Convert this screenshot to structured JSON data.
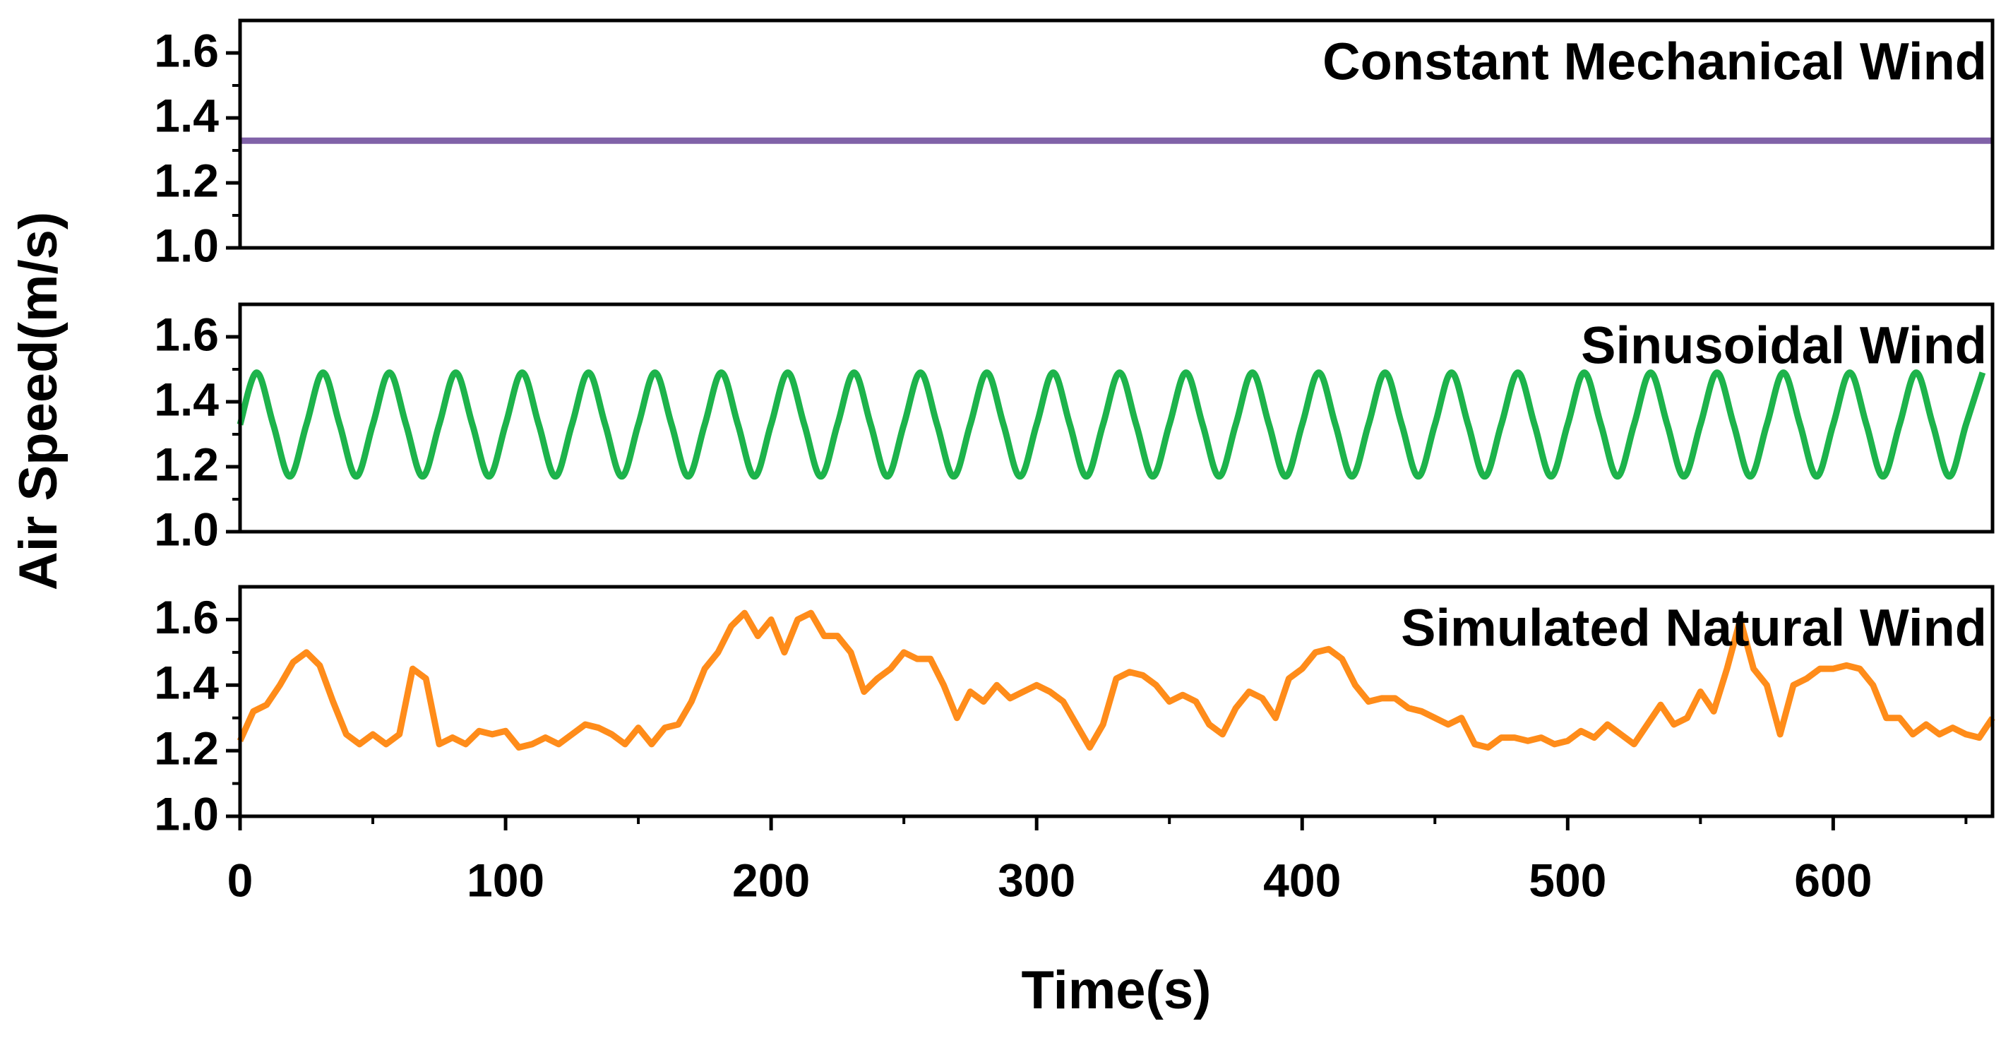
{
  "chart_data": [
    {
      "type": "line",
      "title": "Constant Mechanical Wind",
      "color": "#8062a8",
      "x": [
        0,
        660
      ],
      "values": [
        1.33,
        1.33
      ],
      "xlim": [
        0,
        660
      ],
      "ylim": [
        1,
        1.7
      ],
      "yticks": [
        {
          "value": 1,
          "label": "1.0"
        },
        1.2,
        1.4,
        1.6
      ]
    },
    {
      "type": "line",
      "title": "Sinusoidal Wind",
      "color": "#1db34b",
      "smooth": true,
      "ylabel": "Air Speed(m/s)",
      "x": [
        0,
        6.25,
        12.5,
        18.75,
        25,
        31.25,
        37.5,
        43.75,
        50,
        56.25,
        62.5,
        68.75,
        75,
        81.25,
        87.5,
        93.75,
        100,
        106.25,
        112.5,
        118.75,
        125,
        131.25,
        137.5,
        143.75,
        150,
        156.25,
        162.5,
        168.75,
        175,
        181.25,
        187.5,
        193.75,
        200,
        206.25,
        212.5,
        218.75,
        225,
        231.25,
        237.5,
        243.75,
        250,
        256.25,
        262.5,
        268.75,
        275,
        281.25,
        287.5,
        293.75,
        300,
        306.25,
        312.5,
        318.75,
        325,
        331.25,
        337.5,
        343.75,
        350,
        356.25,
        362.5,
        368.75,
        375,
        381.25,
        387.5,
        393.75,
        400,
        406.25,
        412.5,
        418.75,
        425,
        431.25,
        437.5,
        443.75,
        450,
        456.25,
        462.5,
        468.75,
        475,
        481.25,
        487.5,
        493.75,
        500,
        506.25,
        512.5,
        518.75,
        525,
        531.25,
        537.5,
        543.75,
        550,
        556.25,
        562.5,
        568.75,
        575,
        581.25,
        587.5,
        593.75,
        600,
        606.25,
        612.5,
        618.75,
        625,
        631.25,
        637.5,
        643.75,
        650,
        656.25
      ],
      "values": [
        1.33,
        1.49,
        1.33,
        1.17,
        1.33,
        1.49,
        1.33,
        1.17,
        1.33,
        1.49,
        1.33,
        1.17,
        1.33,
        1.49,
        1.33,
        1.17,
        1.33,
        1.49,
        1.33,
        1.17,
        1.33,
        1.49,
        1.33,
        1.17,
        1.33,
        1.49,
        1.33,
        1.17,
        1.33,
        1.49,
        1.33,
        1.17,
        1.33,
        1.49,
        1.33,
        1.17,
        1.33,
        1.49,
        1.33,
        1.17,
        1.33,
        1.49,
        1.33,
        1.17,
        1.33,
        1.49,
        1.33,
        1.17,
        1.33,
        1.49,
        1.33,
        1.17,
        1.33,
        1.49,
        1.33,
        1.17,
        1.33,
        1.49,
        1.33,
        1.17,
        1.33,
        1.49,
        1.33,
        1.17,
        1.33,
        1.49,
        1.33,
        1.17,
        1.33,
        1.49,
        1.33,
        1.17,
        1.33,
        1.49,
        1.33,
        1.17,
        1.33,
        1.49,
        1.33,
        1.17,
        1.33,
        1.49,
        1.33,
        1.17,
        1.33,
        1.49,
        1.33,
        1.17,
        1.33,
        1.49,
        1.33,
        1.17,
        1.33,
        1.49,
        1.33,
        1.17,
        1.33,
        1.49,
        1.33,
        1.17,
        1.33,
        1.49,
        1.33,
        1.17,
        1.33,
        1.49
      ],
      "xlim": [
        0,
        660
      ],
      "ylim": [
        1,
        1.7
      ],
      "yticks": [
        {
          "value": 1,
          "label": "1.0"
        },
        1.2,
        1.4,
        1.6
      ]
    },
    {
      "type": "line",
      "title": "Simulated Natural Wind",
      "color": "#ff8c1a",
      "xlabel": "Time(s)",
      "x": [
        0,
        5,
        10,
        15,
        20,
        25,
        30,
        35,
        40,
        45,
        50,
        55,
        60,
        65,
        70,
        75,
        80,
        85,
        90,
        95,
        100,
        105,
        110,
        115,
        120,
        125,
        130,
        135,
        140,
        145,
        150,
        155,
        160,
        165,
        170,
        175,
        180,
        185,
        190,
        195,
        200,
        205,
        210,
        215,
        220,
        225,
        230,
        235,
        240,
        245,
        250,
        255,
        260,
        265,
        270,
        275,
        280,
        285,
        290,
        295,
        300,
        305,
        310,
        315,
        320,
        325,
        330,
        335,
        340,
        345,
        350,
        355,
        360,
        365,
        370,
        375,
        380,
        385,
        390,
        395,
        400,
        405,
        410,
        415,
        420,
        425,
        430,
        435,
        440,
        445,
        450,
        455,
        460,
        465,
        470,
        475,
        480,
        485,
        490,
        495,
        500,
        505,
        510,
        515,
        520,
        525,
        530,
        535,
        540,
        545,
        550,
        555,
        560,
        565,
        570,
        575,
        580,
        585,
        590,
        595,
        600,
        605,
        610,
        615,
        620,
        625,
        630,
        635,
        640,
        645,
        650,
        655,
        660
      ],
      "values": [
        1.23,
        1.32,
        1.34,
        1.4,
        1.47,
        1.5,
        1.46,
        1.35,
        1.25,
        1.22,
        1.25,
        1.22,
        1.25,
        1.45,
        1.42,
        1.22,
        1.24,
        1.22,
        1.26,
        1.25,
        1.26,
        1.21,
        1.22,
        1.24,
        1.22,
        1.25,
        1.28,
        1.27,
        1.25,
        1.22,
        1.27,
        1.22,
        1.27,
        1.28,
        1.35,
        1.45,
        1.5,
        1.58,
        1.62,
        1.55,
        1.6,
        1.5,
        1.6,
        1.62,
        1.55,
        1.55,
        1.5,
        1.38,
        1.42,
        1.45,
        1.5,
        1.48,
        1.48,
        1.4,
        1.3,
        1.38,
        1.35,
        1.4,
        1.36,
        1.38,
        1.4,
        1.38,
        1.35,
        1.28,
        1.21,
        1.28,
        1.42,
        1.44,
        1.43,
        1.4,
        1.35,
        1.37,
        1.35,
        1.28,
        1.25,
        1.33,
        1.38,
        1.36,
        1.3,
        1.42,
        1.45,
        1.5,
        1.51,
        1.48,
        1.4,
        1.35,
        1.36,
        1.36,
        1.33,
        1.32,
        1.3,
        1.28,
        1.3,
        1.22,
        1.21,
        1.24,
        1.24,
        1.23,
        1.24,
        1.22,
        1.23,
        1.26,
        1.24,
        1.28,
        1.25,
        1.22,
        1.28,
        1.34,
        1.28,
        1.3,
        1.38,
        1.32,
        1.45,
        1.6,
        1.45,
        1.4,
        1.25,
        1.4,
        1.42,
        1.45,
        1.45,
        1.46,
        1.45,
        1.4,
        1.3,
        1.3,
        1.25,
        1.28,
        1.25,
        1.27,
        1.25,
        1.24,
        1.3
      ],
      "xlim": [
        0,
        660
      ],
      "ylim": [
        1,
        1.7
      ],
      "yticks": [
        {
          "value": 1,
          "label": "1.0"
        },
        1.2,
        1.4,
        1.6
      ],
      "xticks": [
        0,
        100,
        200,
        300,
        400,
        500,
        600
      ]
    }
  ]
}
